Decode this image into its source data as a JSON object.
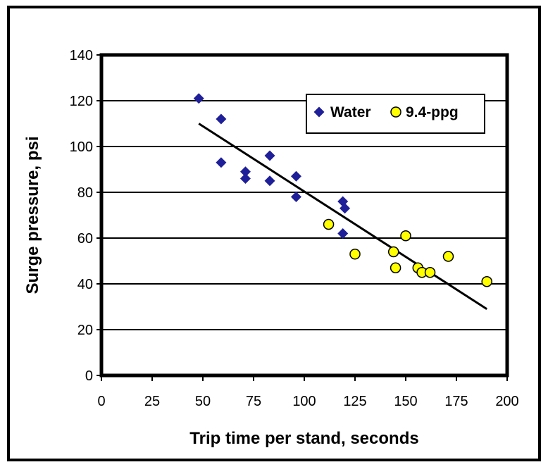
{
  "chart_data": {
    "type": "scatter",
    "title": "",
    "xlabel": "Trip time per stand, seconds",
    "ylabel": "Surge pressure, psi",
    "xlim": [
      0,
      200
    ],
    "ylim": [
      0,
      140
    ],
    "xticks": [
      0,
      25,
      50,
      75,
      100,
      125,
      150,
      175,
      200
    ],
    "yticks": [
      0,
      20,
      40,
      60,
      80,
      100,
      120,
      140
    ],
    "grid": "horizontal",
    "legend": "top-right",
    "series": [
      {
        "name": "Water",
        "marker": "diamond",
        "color": "#1f1f99",
        "points": [
          [
            48,
            121
          ],
          [
            59,
            112
          ],
          [
            59,
            93
          ],
          [
            71,
            89
          ],
          [
            71,
            86
          ],
          [
            83,
            96
          ],
          [
            83,
            85
          ],
          [
            96,
            87
          ],
          [
            96,
            78
          ],
          [
            119,
            76
          ],
          [
            120,
            73
          ],
          [
            119,
            62
          ]
        ]
      },
      {
        "name": "9.4-ppg",
        "marker": "circle",
        "color": "#ffff00",
        "points": [
          [
            112,
            66
          ],
          [
            125,
            53
          ],
          [
            144,
            54
          ],
          [
            145,
            47
          ],
          [
            150,
            61
          ],
          [
            156,
            47
          ],
          [
            158,
            45
          ],
          [
            162,
            45
          ],
          [
            171,
            52
          ],
          [
            190,
            41
          ]
        ]
      }
    ],
    "trendline": {
      "x1": 48,
      "y1": 110,
      "x2": 190,
      "y2": 29,
      "color": "#000000"
    }
  }
}
